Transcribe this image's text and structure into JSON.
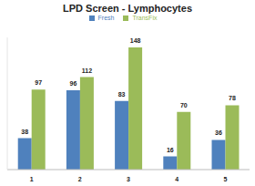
{
  "chart_data": {
    "type": "bar",
    "title": "LPD Screen - Lymphocytes",
    "categories": [
      "1",
      "2",
      "3",
      "4",
      "5"
    ],
    "series": [
      {
        "name": "Fresh",
        "color": "#4f81bd",
        "values": [
          38,
          96,
          83,
          16,
          36
        ]
      },
      {
        "name": "TransFix",
        "color": "#9bbb59",
        "values": [
          97,
          112,
          148,
          70,
          78
        ]
      }
    ],
    "ylim": [
      0,
      160
    ],
    "legend": "top",
    "data_labels": true,
    "tick_labels": "x",
    "grid": false
  }
}
